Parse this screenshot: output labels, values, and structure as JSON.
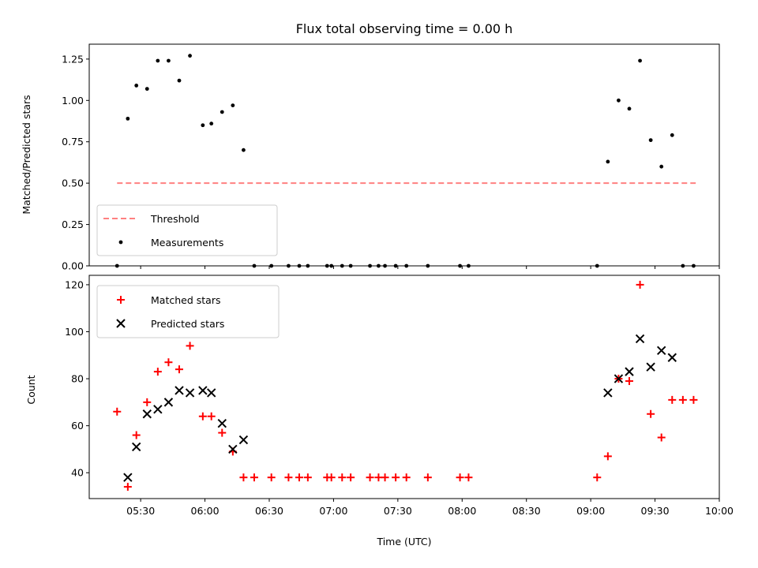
{
  "chart_data": [
    {
      "type": "scatter",
      "title": "Flux total observing time = 0.00 h",
      "ylabel": "Matched/Predicted stars",
      "xlabel": "",
      "ylim": [
        0,
        1.34
      ],
      "xlim": [
        "05:06",
        "10:00"
      ],
      "yticks": [
        "0.00",
        "0.25",
        "0.50",
        "0.75",
        "1.00",
        "1.25"
      ],
      "legend_position": "lower-left",
      "threshold": {
        "name": "Threshold",
        "value": 0.5,
        "x_start": "05:19",
        "x_end": "09:49",
        "color": "#ff8080",
        "style": "dashed"
      },
      "series": [
        {
          "name": "Measurements",
          "color": "#000000",
          "marker": "dot",
          "points": [
            [
              "05:19",
              0.0
            ],
            [
              "05:24",
              0.89
            ],
            [
              "05:28",
              1.09
            ],
            [
              "05:33",
              1.07
            ],
            [
              "05:38",
              1.24
            ],
            [
              "05:43",
              1.24
            ],
            [
              "05:48",
              1.12
            ],
            [
              "05:53",
              1.27
            ],
            [
              "05:59",
              0.85
            ],
            [
              "06:03",
              0.86
            ],
            [
              "06:08",
              0.93
            ],
            [
              "06:13",
              0.97
            ],
            [
              "06:18",
              0.7
            ],
            [
              "06:23",
              0.0
            ],
            [
              "06:31",
              0.0
            ],
            [
              "06:39",
              0.0
            ],
            [
              "06:44",
              0.0
            ],
            [
              "06:48",
              0.0
            ],
            [
              "06:57",
              0.0
            ],
            [
              "06:59",
              0.0
            ],
            [
              "07:04",
              0.0
            ],
            [
              "07:08",
              0.0
            ],
            [
              "07:17",
              0.0
            ],
            [
              "07:21",
              0.0
            ],
            [
              "07:24",
              0.0
            ],
            [
              "07:29",
              0.0
            ],
            [
              "07:34",
              0.0
            ],
            [
              "07:44",
              0.0
            ],
            [
              "07:59",
              0.0
            ],
            [
              "08:03",
              0.0
            ],
            [
              "09:03",
              0.0
            ],
            [
              "09:08",
              0.63
            ],
            [
              "09:13",
              1.0
            ],
            [
              "09:18",
              0.95
            ],
            [
              "09:23",
              1.24
            ],
            [
              "09:28",
              0.76
            ],
            [
              "09:33",
              0.6
            ],
            [
              "09:38",
              0.79
            ],
            [
              "09:43",
              0.0
            ],
            [
              "09:48",
              0.0
            ]
          ]
        }
      ]
    },
    {
      "type": "scatter",
      "title": "",
      "ylabel": "Count",
      "xlabel": "Time (UTC)",
      "ylim": [
        29,
        124
      ],
      "xlim": [
        "05:06",
        "10:00"
      ],
      "xticks": [
        "05:30",
        "06:00",
        "06:30",
        "07:00",
        "07:30",
        "08:00",
        "08:30",
        "09:00",
        "09:30",
        "10:00"
      ],
      "yticks": [
        "40",
        "60",
        "80",
        "100",
        "120"
      ],
      "legend_position": "top-left",
      "series": [
        {
          "name": "Matched stars",
          "color": "#ff0000",
          "marker": "plus",
          "points": [
            [
              "05:19",
              66
            ],
            [
              "05:24",
              34
            ],
            [
              "05:28",
              56
            ],
            [
              "05:33",
              70
            ],
            [
              "05:38",
              83
            ],
            [
              "05:43",
              87
            ],
            [
              "05:48",
              84
            ],
            [
              "05:53",
              94
            ],
            [
              "05:59",
              64
            ],
            [
              "06:03",
              64
            ],
            [
              "06:08",
              57
            ],
            [
              "06:13",
              49
            ],
            [
              "06:18",
              38
            ],
            [
              "06:23",
              38
            ],
            [
              "06:31",
              38
            ],
            [
              "06:39",
              38
            ],
            [
              "06:44",
              38
            ],
            [
              "06:48",
              38
            ],
            [
              "06:57",
              38
            ],
            [
              "06:59",
              38
            ],
            [
              "07:04",
              38
            ],
            [
              "07:08",
              38
            ],
            [
              "07:17",
              38
            ],
            [
              "07:21",
              38
            ],
            [
              "07:24",
              38
            ],
            [
              "07:29",
              38
            ],
            [
              "07:34",
              38
            ],
            [
              "07:44",
              38
            ],
            [
              "07:59",
              38
            ],
            [
              "08:03",
              38
            ],
            [
              "09:03",
              38
            ],
            [
              "09:08",
              47
            ],
            [
              "09:13",
              80
            ],
            [
              "09:18",
              79
            ],
            [
              "09:23",
              120
            ],
            [
              "09:28",
              65
            ],
            [
              "09:33",
              55
            ],
            [
              "09:38",
              71
            ],
            [
              "09:43",
              71
            ],
            [
              "09:48",
              71
            ]
          ]
        },
        {
          "name": "Predicted stars",
          "color": "#000000",
          "marker": "x",
          "points": [
            [
              "05:24",
              38
            ],
            [
              "05:28",
              51
            ],
            [
              "05:33",
              65
            ],
            [
              "05:38",
              67
            ],
            [
              "05:43",
              70
            ],
            [
              "05:48",
              75
            ],
            [
              "05:53",
              74
            ],
            [
              "05:59",
              75
            ],
            [
              "06:03",
              74
            ],
            [
              "06:08",
              61
            ],
            [
              "06:13",
              50
            ],
            [
              "06:18",
              54
            ],
            [
              "09:08",
              74
            ],
            [
              "09:13",
              80
            ],
            [
              "09:18",
              83
            ],
            [
              "09:23",
              97
            ],
            [
              "09:28",
              85
            ],
            [
              "09:33",
              92
            ],
            [
              "09:38",
              89
            ]
          ]
        }
      ]
    }
  ]
}
